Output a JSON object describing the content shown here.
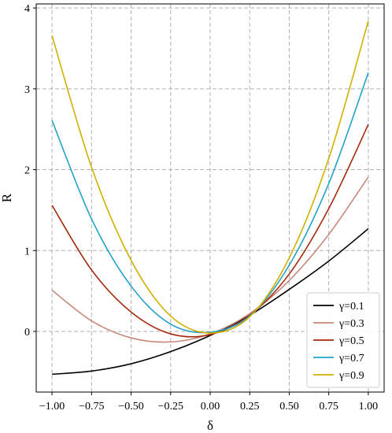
{
  "chart_data": {
    "type": "line",
    "xlabel": "δ",
    "ylabel": "R",
    "xlim": [
      -1.1,
      1.1
    ],
    "ylim": [
      -0.75,
      4.05
    ],
    "xticks": [
      -1.0,
      -0.75,
      -0.5,
      -0.25,
      0.0,
      0.25,
      0.5,
      0.75,
      1.0
    ],
    "xtick_labels": [
      "−1.00",
      "−0.75",
      "−0.50",
      "−0.25",
      "0.00",
      "0.25",
      "0.50",
      "0.75",
      "1.00"
    ],
    "yticks": [
      0,
      1,
      2,
      3,
      4
    ],
    "ytick_labels": [
      "0",
      "1",
      "2",
      "3",
      "4"
    ],
    "grid": true,
    "legend_position": "bottom-right",
    "x": [
      -1.0,
      -0.75,
      -0.5,
      -0.25,
      0.0,
      0.25,
      0.5,
      0.75,
      1.0
    ],
    "series": [
      {
        "name": "γ=0.1",
        "color": "#000000",
        "values": [
          -0.53,
          -0.49,
          -0.4,
          -0.25,
          -0.05,
          0.2,
          0.52,
          0.87,
          1.27
        ]
      },
      {
        "name": "γ=0.3",
        "color": "#c9887a",
        "values": [
          0.51,
          0.13,
          -0.08,
          -0.13,
          -0.03,
          0.22,
          0.63,
          1.2,
          1.91
        ]
      },
      {
        "name": "γ=0.5",
        "color": "#a52a0c",
        "values": [
          1.56,
          0.76,
          0.24,
          -0.03,
          -0.04,
          0.2,
          0.71,
          1.52,
          2.56
        ]
      },
      {
        "name": "γ=0.7",
        "color": "#23a2c8",
        "values": [
          2.61,
          1.39,
          0.56,
          0.09,
          -0.01,
          0.19,
          0.82,
          1.83,
          3.2
        ]
      },
      {
        "name": "γ=0.9",
        "color": "#d1b000",
        "values": [
          3.66,
          2.03,
          0.88,
          0.19,
          -0.02,
          0.18,
          0.91,
          2.14,
          3.84
        ]
      }
    ]
  }
}
